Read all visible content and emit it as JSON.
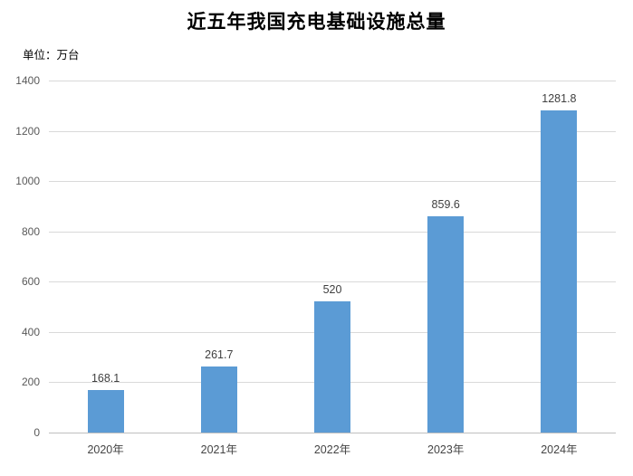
{
  "header": {
    "title": "近五年我国充电基础设施总量",
    "unit_label": "单位：万台"
  },
  "chart_data": {
    "type": "bar",
    "title": "近五年我国充电基础设施总量",
    "subtitle": "单位：万台",
    "categories": [
      "2020年",
      "2021年",
      "2022年",
      "2023年",
      "2024年"
    ],
    "values": [
      168.1,
      261.7,
      520,
      859.6,
      1281.8
    ],
    "data_labels": [
      "168.1",
      "261.7",
      "520",
      "859.6",
      "1281.8"
    ],
    "xlabel": "",
    "ylabel": "",
    "ylim": [
      0,
      1400
    ],
    "yticks": [
      0,
      200,
      400,
      600,
      800,
      1000,
      1200,
      1400
    ],
    "grid": true,
    "legend_position": "none",
    "colors": {
      "bar": "#5B9BD5",
      "gridline": "#D9D9D9",
      "axis_line": "#BFBFBF",
      "tick_label": "#595959",
      "data_label": "#404040",
      "title": "#000000",
      "background": "#FFFFFF"
    }
  }
}
